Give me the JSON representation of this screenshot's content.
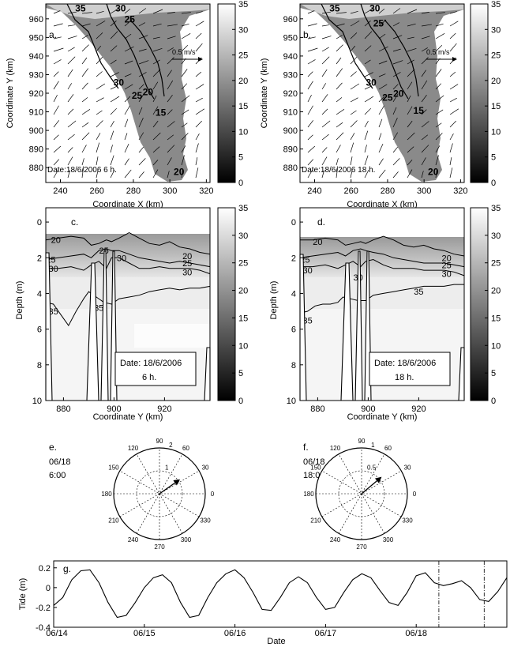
{
  "panels": {
    "a": {
      "letter": "a.",
      "date_text": "Date:18/6/2006 6 h.",
      "scale_text": "0.5 m/s",
      "xlabel": "Coordinate X (km)",
      "ylabel": "Coordinate Y (km)"
    },
    "b": {
      "letter": "b.",
      "date_text": "Date:18/6/2006 18 h.",
      "scale_text": "0.5 m/s",
      "xlabel": "Coordinate X (km)",
      "ylabel": "Coordinate Y (km)"
    },
    "c": {
      "letter": "c.",
      "date_line1": "Date: 18/6/2006",
      "date_line2": "6 h.",
      "xlabel": "Coordinate Y (km)",
      "ylabel": "Depth (m)"
    },
    "d": {
      "letter": "d.",
      "date_line1": "Date: 18/6/2006",
      "date_line2": "18 h.",
      "xlabel": "Coordinate Y (km)",
      "ylabel": "Depth (m)"
    },
    "e": {
      "letter": "e.",
      "date_text": "06/18",
      "time_text": "6:00"
    },
    "f": {
      "letter": "f.",
      "date_text": "06/18",
      "time_text": "18:00"
    },
    "g": {
      "letter": "g.",
      "xlabel": "Date",
      "ylabel": "Tide (m)"
    }
  },
  "colors": {
    "shade_dark": "#7f7f7f",
    "shade_light": "#f2f2f2",
    "line": "#000000"
  },
  "chart_data": [
    {
      "id": "a",
      "type": "heatmap",
      "title": "",
      "xlim": [
        232,
        322
      ],
      "ylim": [
        872,
        968
      ],
      "xticks": [
        240,
        260,
        280,
        300,
        320
      ],
      "yticks": [
        880,
        890,
        900,
        910,
        920,
        930,
        940,
        950,
        960
      ],
      "colorbar": {
        "range": [
          0,
          35
        ],
        "ticks": [
          0,
          5,
          10,
          15,
          20,
          25,
          30,
          35
        ]
      },
      "contour_labels": [
        {
          "text": "35",
          "x": 251,
          "y": 964
        },
        {
          "text": "30",
          "x": 273,
          "y": 964
        },
        {
          "text": "25",
          "x": 278,
          "y": 958
        },
        {
          "text": "30",
          "x": 272,
          "y": 924
        },
        {
          "text": "25",
          "x": 282,
          "y": 917
        },
        {
          "text": "20",
          "x": 288,
          "y": 919
        },
        {
          "text": "15",
          "x": 295,
          "y": 908
        },
        {
          "text": "20",
          "x": 305,
          "y": 876
        }
      ],
      "vector_scale_ms": 0.5
    },
    {
      "id": "b",
      "type": "heatmap",
      "title": "",
      "xlim": [
        232,
        322
      ],
      "ylim": [
        872,
        968
      ],
      "xticks": [
        240,
        260,
        280,
        300,
        320
      ],
      "yticks": [
        880,
        890,
        900,
        910,
        920,
        930,
        940,
        950,
        960
      ],
      "colorbar": {
        "range": [
          0,
          35
        ],
        "ticks": [
          0,
          5,
          10,
          15,
          20,
          25,
          30,
          35
        ]
      },
      "contour_labels": [
        {
          "text": "35",
          "x": 251,
          "y": 964
        },
        {
          "text": "30",
          "x": 273,
          "y": 964
        },
        {
          "text": "25",
          "x": 275,
          "y": 956
        },
        {
          "text": "30",
          "x": 271,
          "y": 924
        },
        {
          "text": "25",
          "x": 280,
          "y": 916
        },
        {
          "text": "20",
          "x": 286,
          "y": 918
        },
        {
          "text": "15",
          "x": 297,
          "y": 909
        },
        {
          "text": "20",
          "x": 305,
          "y": 876
        }
      ],
      "vector_scale_ms": 0.5
    },
    {
      "id": "c",
      "type": "heatmap",
      "title": "",
      "xlim": [
        873,
        938
      ],
      "ylim": [
        10,
        -0.8
      ],
      "xticks": [
        880,
        900,
        920
      ],
      "yticks": [
        0,
        2,
        4,
        6,
        8,
        10
      ],
      "colorbar": {
        "range": [
          0,
          35
        ],
        "ticks": [
          0,
          5,
          10,
          15,
          20,
          25,
          30,
          35
        ]
      },
      "contours": [
        {
          "level": 20,
          "x": [
            873,
            878,
            883,
            888,
            891,
            894,
            897,
            899,
            902,
            906,
            910,
            914,
            918,
            922,
            926,
            930,
            934,
            938
          ],
          "y": [
            1.0,
            0.9,
            0.8,
            0.9,
            1.3,
            1.2,
            1.0,
            1.1,
            0.9,
            0.6,
            0.9,
            1.2,
            1.3,
            1.1,
            1.4,
            1.5,
            1.7,
            1.8
          ]
        },
        {
          "level": 25,
          "x": [
            873,
            878,
            883,
            888,
            891,
            894,
            897,
            899,
            902,
            906,
            910,
            914,
            918,
            922,
            926,
            930,
            934,
            938
          ],
          "y": [
            2.1,
            2.0,
            1.9,
            1.8,
            2.0,
            1.6,
            1.5,
            1.6,
            1.6,
            1.8,
            2.0,
            2.1,
            2.2,
            2.3,
            2.2,
            2.3,
            2.4,
            2.5
          ]
        },
        {
          "level": 30,
          "x": [
            873,
            878,
            883,
            888,
            891,
            894,
            897,
            899,
            902,
            906,
            910,
            914,
            918,
            922,
            926,
            930,
            934,
            938
          ],
          "y": [
            2.6,
            2.6,
            2.5,
            2.7,
            2.4,
            2.2,
            2.6,
            2.0,
            2.0,
            2.3,
            2.6,
            2.6,
            2.5,
            2.6,
            2.6,
            2.6,
            2.7,
            2.9
          ]
        },
        {
          "level": 35,
          "x": [
            873,
            876,
            879,
            882,
            885,
            888,
            890,
            893,
            896,
            899,
            902,
            906,
            910,
            914,
            918,
            922,
            926,
            930,
            934,
            938
          ],
          "y": [
            4.5,
            4.6,
            5.2,
            5.8,
            5.0,
            4.3,
            3.9,
            4.2,
            4.5,
            4.6,
            4.3,
            4.2,
            4.1,
            3.9,
            3.8,
            3.7,
            3.8,
            3.7,
            3.7,
            3.6
          ]
        }
      ],
      "contour_labels": [
        {
          "text": "20",
          "x": 877,
          "y": 1.0
        },
        {
          "text": "25",
          "x": 875,
          "y": 2.1
        },
        {
          "text": "30",
          "x": 876,
          "y": 2.6
        },
        {
          "text": "25",
          "x": 896,
          "y": 1.6
        },
        {
          "text": "30",
          "x": 903,
          "y": 2.0
        },
        {
          "text": "20",
          "x": 929,
          "y": 1.9
        },
        {
          "text": "25",
          "x": 929,
          "y": 2.3
        },
        {
          "text": "30",
          "x": 929,
          "y": 2.8
        },
        {
          "text": "35",
          "x": 876,
          "y": 5.0
        },
        {
          "text": "35",
          "x": 894,
          "y": 4.8
        }
      ]
    },
    {
      "id": "d",
      "type": "heatmap",
      "title": "",
      "xlim": [
        873,
        938
      ],
      "ylim": [
        10,
        -0.8
      ],
      "xticks": [
        880,
        900,
        920
      ],
      "yticks": [
        0,
        2,
        4,
        6,
        8,
        10
      ],
      "colorbar": {
        "range": [
          0,
          35
        ],
        "ticks": [
          0,
          5,
          10,
          15,
          20,
          25,
          30,
          35
        ]
      },
      "contours": [
        {
          "level": 20,
          "x": [
            873,
            878,
            883,
            888,
            891,
            894,
            897,
            899,
            902,
            906,
            910,
            914,
            918,
            922,
            926,
            930,
            934,
            938
          ],
          "y": [
            1.0,
            1.0,
            0.9,
            1.0,
            1.3,
            1.2,
            1.1,
            1.2,
            1.0,
            0.8,
            1.0,
            1.3,
            1.4,
            1.3,
            1.5,
            1.6,
            1.8,
            1.9
          ]
        },
        {
          "level": 25,
          "x": [
            873,
            878,
            883,
            888,
            891,
            894,
            897,
            899,
            902,
            906,
            910,
            914,
            918,
            922,
            926,
            930,
            934,
            938
          ],
          "y": [
            2.0,
            1.9,
            1.8,
            1.7,
            1.9,
            1.6,
            1.5,
            1.6,
            1.7,
            1.8,
            2.0,
            2.1,
            2.2,
            2.3,
            2.3,
            2.3,
            2.4,
            2.5
          ]
        },
        {
          "level": 30,
          "x": [
            873,
            878,
            883,
            888,
            891,
            894,
            897,
            899,
            902,
            906,
            910,
            914,
            918,
            922,
            926,
            930,
            934,
            938
          ],
          "y": [
            2.5,
            2.5,
            2.4,
            2.6,
            2.4,
            2.2,
            2.5,
            2.2,
            2.1,
            2.4,
            2.6,
            2.6,
            2.6,
            2.7,
            2.7,
            2.7,
            2.8,
            3.0
          ]
        },
        {
          "level": 35,
          "x": [
            873,
            876,
            879,
            882,
            885,
            888,
            890,
            893,
            896,
            899,
            902,
            906,
            910,
            914,
            918,
            922,
            926,
            930,
            934,
            938
          ],
          "y": [
            5.1,
            5.0,
            4.7,
            4.6,
            4.6,
            4.5,
            4.2,
            4.3,
            4.4,
            4.4,
            4.1,
            4.0,
            3.9,
            3.8,
            3.7,
            3.6,
            3.6,
            3.6,
            3.5,
            3.5
          ]
        }
      ],
      "contour_labels": [
        {
          "text": "20",
          "x": 880,
          "y": 1.1
        },
        {
          "text": "25",
          "x": 875,
          "y": 2.1
        },
        {
          "text": "30",
          "x": 876,
          "y": 2.7
        },
        {
          "text": "30",
          "x": 896,
          "y": 3.1
        },
        {
          "text": "20",
          "x": 931,
          "y": 2.0
        },
        {
          "text": "25",
          "x": 931,
          "y": 2.4
        },
        {
          "text": "30",
          "x": 931,
          "y": 2.9
        },
        {
          "text": "35",
          "x": 920,
          "y": 3.9
        },
        {
          "text": "35",
          "x": 876,
          "y": 5.5
        }
      ]
    },
    {
      "id": "e",
      "type": "polar",
      "radius_ticks": [
        1,
        2
      ],
      "radius_max": 2,
      "angle_labels": [
        90,
        60,
        30,
        0,
        330,
        300,
        270,
        240,
        210,
        180,
        150,
        120
      ],
      "vector": {
        "magnitude": 1.05,
        "angle_deg": 35
      }
    },
    {
      "id": "f",
      "type": "polar",
      "radius_ticks": [
        0.5,
        1
      ],
      "radius_max": 1,
      "angle_labels": [
        90,
        60,
        30,
        0,
        330,
        300,
        270,
        240,
        210,
        180,
        150,
        120
      ],
      "vector": {
        "magnitude": 0.55,
        "angle_deg": 40
      }
    },
    {
      "id": "g",
      "type": "line",
      "title": "",
      "xlabel": "Date",
      "ylabel": "Tide (m)",
      "x_tick_labels": [
        "06/14",
        "06/15",
        "06/16",
        "06/17",
        "06/18"
      ],
      "xlim": [
        0,
        5.0
      ],
      "ylim": [
        -0.4,
        0.27
      ],
      "yticks": [
        -0.4,
        -0.2,
        0,
        0.2
      ],
      "markers": [
        4.25,
        4.75
      ],
      "series": [
        {
          "x": [
            0.0,
            0.1,
            0.2,
            0.3,
            0.4,
            0.5,
            0.55,
            0.6,
            0.7,
            0.8,
            0.9,
            1.0,
            1.1,
            1.2,
            1.3,
            1.4,
            1.5,
            1.6,
            1.7,
            1.8,
            1.9,
            2.0,
            2.1,
            2.2,
            2.3,
            2.4,
            2.5,
            2.6,
            2.7,
            2.8,
            2.9,
            3.0,
            3.1,
            3.2,
            3.3,
            3.4,
            3.5,
            3.6,
            3.7,
            3.8,
            3.9,
            4.0,
            4.1,
            4.2,
            4.3,
            4.4,
            4.5,
            4.6,
            4.7,
            4.8,
            4.9,
            5.0
          ],
          "y": [
            -0.18,
            -0.1,
            0.08,
            0.17,
            0.18,
            0.05,
            -0.05,
            -0.15,
            -0.3,
            -0.28,
            -0.15,
            0.0,
            0.1,
            0.13,
            0.05,
            -0.15,
            -0.3,
            -0.28,
            -0.1,
            0.05,
            0.14,
            0.18,
            0.1,
            -0.05,
            -0.22,
            -0.23,
            -0.1,
            0.05,
            0.11,
            0.05,
            -0.1,
            -0.22,
            -0.2,
            -0.05,
            0.08,
            0.14,
            0.1,
            -0.03,
            -0.15,
            -0.18,
            -0.05,
            0.12,
            0.15,
            0.05,
            0.02,
            0.04,
            0.07,
            0.0,
            -0.12,
            -0.14,
            -0.04,
            0.1
          ]
        }
      ]
    }
  ]
}
